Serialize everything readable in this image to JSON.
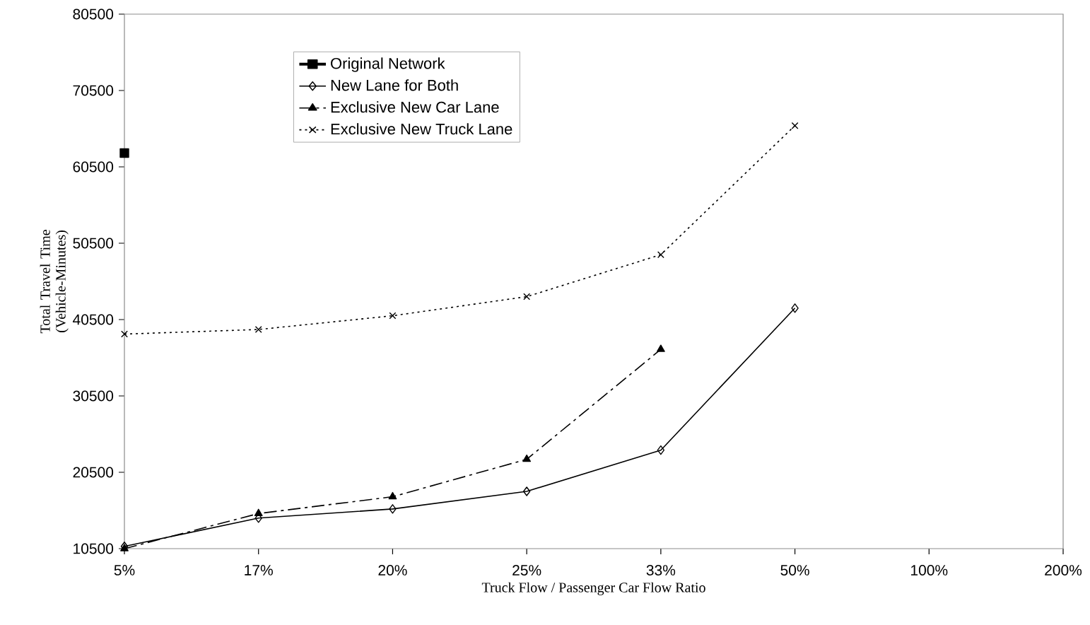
{
  "chart_data": {
    "type": "line",
    "xlabel": "Truck Flow / Passenger Car Flow Ratio",
    "ylabel": "Total Travel Time (Vehicle-Minutes)",
    "categories": [
      "5%",
      "17%",
      "20%",
      "25%",
      "33%",
      "50%",
      "100%",
      "200%"
    ],
    "ylim": [
      10500,
      80500
    ],
    "yticks": [
      10500,
      20500,
      30500,
      40500,
      50500,
      60500,
      70500,
      80500
    ],
    "grid": false,
    "legend": "top left",
    "series": [
      {
        "name": "Original Network",
        "color": "#000000",
        "marker": "square",
        "line_style": "solid",
        "values": [
          62300,
          null,
          null,
          null,
          null,
          null,
          null,
          null
        ]
      },
      {
        "name": "New Lane for Both",
        "color": "#000000",
        "marker": "diamond",
        "line_style": "solid",
        "values": [
          10800,
          14500,
          15700,
          18000,
          23400,
          42000,
          null,
          null
        ]
      },
      {
        "name": "Exclusive New Car Lane",
        "color": "#000000",
        "marker": "triangle",
        "line_style": "dashed",
        "values": [
          10500,
          15100,
          17300,
          22200,
          36600,
          null,
          null,
          null
        ]
      },
      {
        "name": "Exclusive New Truck Lane",
        "color": "#000000",
        "marker": "cross",
        "line_style": "dotted",
        "values": [
          38600,
          39200,
          41000,
          43500,
          49000,
          65900,
          null,
          null
        ]
      }
    ]
  }
}
